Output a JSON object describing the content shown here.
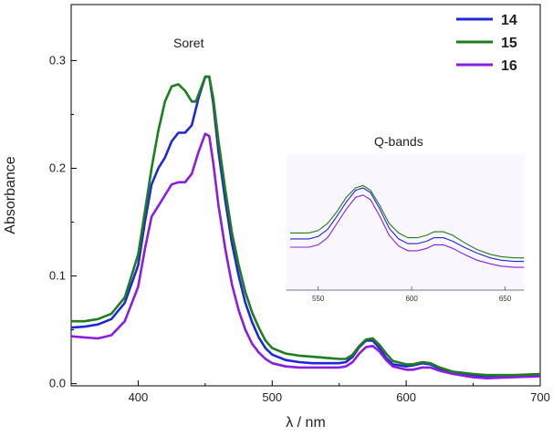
{
  "chart_data": {
    "type": "line",
    "title": "",
    "xlabel": "λ / nm",
    "ylabel": "Absorbance",
    "xlim": [
      350,
      700
    ],
    "ylim": [
      -0.002,
      0.352
    ],
    "xticks": [
      400,
      500,
      600,
      700
    ],
    "yticks": [
      0.0,
      0.1,
      0.2,
      0.3
    ],
    "xtick_labels": [
      "400",
      "500",
      "600",
      "700"
    ],
    "ytick_labels": [
      "0.0",
      "0.1",
      "0.2",
      "0.3"
    ],
    "grid": false,
    "legend_position": "top-right",
    "annotations": {
      "soret": "Soret",
      "qbands": "Q-bands"
    },
    "series": [
      {
        "name": "14",
        "color": "#1f28d6",
        "points": [
          [
            350,
            0.052
          ],
          [
            360,
            0.053
          ],
          [
            370,
            0.055
          ],
          [
            380,
            0.06
          ],
          [
            390,
            0.075
          ],
          [
            400,
            0.11
          ],
          [
            405,
            0.15
          ],
          [
            410,
            0.185
          ],
          [
            415,
            0.2
          ],
          [
            420,
            0.21
          ],
          [
            425,
            0.225
          ],
          [
            430,
            0.233
          ],
          [
            435,
            0.233
          ],
          [
            440,
            0.24
          ],
          [
            445,
            0.265
          ],
          [
            450,
            0.285
          ],
          [
            453,
            0.285
          ],
          [
            456,
            0.26
          ],
          [
            460,
            0.215
          ],
          [
            465,
            0.17
          ],
          [
            470,
            0.13
          ],
          [
            475,
            0.1
          ],
          [
            480,
            0.075
          ],
          [
            485,
            0.057
          ],
          [
            490,
            0.043
          ],
          [
            495,
            0.033
          ],
          [
            500,
            0.027
          ],
          [
            510,
            0.022
          ],
          [
            520,
            0.02
          ],
          [
            530,
            0.019
          ],
          [
            540,
            0.019
          ],
          [
            550,
            0.019
          ],
          [
            555,
            0.02
          ],
          [
            560,
            0.025
          ],
          [
            565,
            0.034
          ],
          [
            570,
            0.04
          ],
          [
            575,
            0.04
          ],
          [
            580,
            0.033
          ],
          [
            585,
            0.024
          ],
          [
            590,
            0.018
          ],
          [
            600,
            0.016
          ],
          [
            605,
            0.017
          ],
          [
            612,
            0.019
          ],
          [
            618,
            0.018
          ],
          [
            625,
            0.014
          ],
          [
            635,
            0.011
          ],
          [
            650,
            0.008
          ],
          [
            660,
            0.007
          ],
          [
            680,
            0.007
          ],
          [
            700,
            0.008
          ]
        ]
      },
      {
        "name": "15",
        "color": "#1e7d1e",
        "points": [
          [
            350,
            0.058
          ],
          [
            360,
            0.058
          ],
          [
            370,
            0.06
          ],
          [
            380,
            0.065
          ],
          [
            390,
            0.08
          ],
          [
            400,
            0.12
          ],
          [
            405,
            0.16
          ],
          [
            410,
            0.2
          ],
          [
            415,
            0.235
          ],
          [
            420,
            0.262
          ],
          [
            425,
            0.276
          ],
          [
            430,
            0.278
          ],
          [
            435,
            0.272
          ],
          [
            440,
            0.262
          ],
          [
            443,
            0.262
          ],
          [
            447,
            0.275
          ],
          [
            450,
            0.285
          ],
          [
            453,
            0.285
          ],
          [
            456,
            0.265
          ],
          [
            460,
            0.225
          ],
          [
            465,
            0.18
          ],
          [
            470,
            0.14
          ],
          [
            475,
            0.11
          ],
          [
            480,
            0.085
          ],
          [
            485,
            0.066
          ],
          [
            490,
            0.052
          ],
          [
            495,
            0.04
          ],
          [
            500,
            0.033
          ],
          [
            510,
            0.028
          ],
          [
            520,
            0.026
          ],
          [
            530,
            0.025
          ],
          [
            540,
            0.024
          ],
          [
            550,
            0.023
          ],
          [
            555,
            0.023
          ],
          [
            560,
            0.027
          ],
          [
            565,
            0.035
          ],
          [
            570,
            0.041
          ],
          [
            575,
            0.042
          ],
          [
            580,
            0.036
          ],
          [
            585,
            0.028
          ],
          [
            590,
            0.021
          ],
          [
            600,
            0.018
          ],
          [
            605,
            0.018
          ],
          [
            612,
            0.02
          ],
          [
            618,
            0.019
          ],
          [
            625,
            0.015
          ],
          [
            635,
            0.011
          ],
          [
            650,
            0.009
          ],
          [
            660,
            0.008
          ],
          [
            680,
            0.008
          ],
          [
            700,
            0.009
          ]
        ]
      },
      {
        "name": "16",
        "color": "#8a1ee0",
        "points": [
          [
            350,
            0.044
          ],
          [
            360,
            0.043
          ],
          [
            370,
            0.042
          ],
          [
            380,
            0.045
          ],
          [
            390,
            0.058
          ],
          [
            400,
            0.09
          ],
          [
            405,
            0.125
          ],
          [
            410,
            0.155
          ],
          [
            415,
            0.165
          ],
          [
            420,
            0.175
          ],
          [
            425,
            0.185
          ],
          [
            430,
            0.187
          ],
          [
            435,
            0.187
          ],
          [
            440,
            0.195
          ],
          [
            445,
            0.215
          ],
          [
            450,
            0.232
          ],
          [
            453,
            0.23
          ],
          [
            456,
            0.205
          ],
          [
            460,
            0.165
          ],
          [
            465,
            0.125
          ],
          [
            470,
            0.092
          ],
          [
            475,
            0.068
          ],
          [
            480,
            0.05
          ],
          [
            485,
            0.037
          ],
          [
            490,
            0.029
          ],
          [
            495,
            0.023
          ],
          [
            500,
            0.019
          ],
          [
            510,
            0.016
          ],
          [
            520,
            0.015
          ],
          [
            530,
            0.015
          ],
          [
            540,
            0.015
          ],
          [
            550,
            0.015
          ],
          [
            555,
            0.016
          ],
          [
            560,
            0.02
          ],
          [
            565,
            0.028
          ],
          [
            570,
            0.034
          ],
          [
            575,
            0.035
          ],
          [
            580,
            0.03
          ],
          [
            585,
            0.022
          ],
          [
            590,
            0.016
          ],
          [
            600,
            0.013
          ],
          [
            605,
            0.013
          ],
          [
            612,
            0.015
          ],
          [
            618,
            0.015
          ],
          [
            625,
            0.012
          ],
          [
            635,
            0.009
          ],
          [
            650,
            0.006
          ],
          [
            660,
            0.005
          ],
          [
            680,
            0.006
          ],
          [
            700,
            0.007
          ]
        ]
      }
    ],
    "inset": {
      "title": "Q-bands",
      "xlim": [
        535,
        660
      ],
      "ylim": [
        0.0,
        1.0
      ],
      "xticks": [
        550,
        600,
        650
      ],
      "xtick_labels": [
        "550",
        "600",
        "650"
      ],
      "series": [
        {
          "name": "15",
          "color": "#1e7d1e",
          "points": [
            [
              535,
              0.42
            ],
            [
              545,
              0.42
            ],
            [
              550,
              0.44
            ],
            [
              555,
              0.5
            ],
            [
              560,
              0.6
            ],
            [
              565,
              0.72
            ],
            [
              570,
              0.8
            ],
            [
              574,
              0.82
            ],
            [
              578,
              0.78
            ],
            [
              583,
              0.65
            ],
            [
              588,
              0.5
            ],
            [
              593,
              0.42
            ],
            [
              598,
              0.38
            ],
            [
              603,
              0.38
            ],
            [
              608,
              0.4
            ],
            [
              612,
              0.43
            ],
            [
              617,
              0.43
            ],
            [
              622,
              0.4
            ],
            [
              628,
              0.34
            ],
            [
              635,
              0.28
            ],
            [
              642,
              0.24
            ],
            [
              648,
              0.22
            ],
            [
              655,
              0.21
            ],
            [
              660,
              0.21
            ]
          ]
        },
        {
          "name": "14",
          "color": "#1f28d6",
          "points": [
            [
              535,
              0.37
            ],
            [
              545,
              0.37
            ],
            [
              550,
              0.39
            ],
            [
              555,
              0.45
            ],
            [
              560,
              0.56
            ],
            [
              565,
              0.68
            ],
            [
              570,
              0.78
            ],
            [
              574,
              0.8
            ],
            [
              578,
              0.76
            ],
            [
              583,
              0.62
            ],
            [
              588,
              0.46
            ],
            [
              593,
              0.37
            ],
            [
              598,
              0.33
            ],
            [
              603,
              0.33
            ],
            [
              608,
              0.35
            ],
            [
              612,
              0.38
            ],
            [
              617,
              0.38
            ],
            [
              622,
              0.35
            ],
            [
              628,
              0.3
            ],
            [
              635,
              0.25
            ],
            [
              642,
              0.21
            ],
            [
              648,
              0.19
            ],
            [
              655,
              0.18
            ],
            [
              660,
              0.18
            ]
          ]
        },
        {
          "name": "16",
          "color": "#8a1ee0",
          "points": [
            [
              535,
              0.3
            ],
            [
              545,
              0.3
            ],
            [
              550,
              0.32
            ],
            [
              555,
              0.38
            ],
            [
              560,
              0.5
            ],
            [
              565,
              0.62
            ],
            [
              570,
              0.72
            ],
            [
              574,
              0.74
            ],
            [
              578,
              0.7
            ],
            [
              583,
              0.56
            ],
            [
              588,
              0.4
            ],
            [
              593,
              0.31
            ],
            [
              598,
              0.27
            ],
            [
              603,
              0.27
            ],
            [
              608,
              0.29
            ],
            [
              612,
              0.32
            ],
            [
              617,
              0.32
            ],
            [
              622,
              0.29
            ],
            [
              628,
              0.24
            ],
            [
              635,
              0.19
            ],
            [
              642,
              0.16
            ],
            [
              648,
              0.14
            ],
            [
              655,
              0.13
            ],
            [
              660,
              0.13
            ]
          ]
        }
      ]
    }
  }
}
